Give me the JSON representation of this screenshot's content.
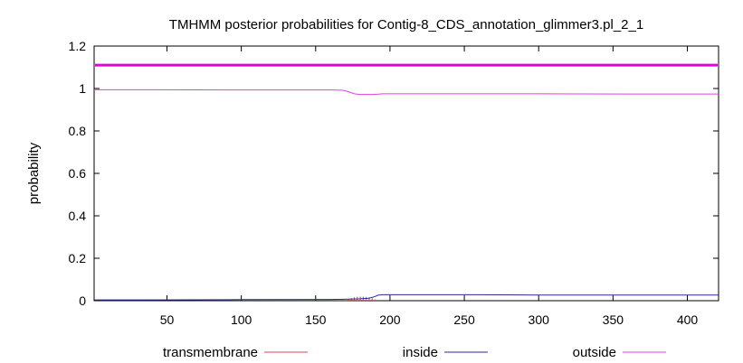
{
  "chart_data": {
    "type": "line",
    "title": "TMHMM posterior probabilities for Contig-8_CDS_annotation_glimmer3.pl_2_1",
    "xlabel": "",
    "ylabel": "probability",
    "xlim": [
      1,
      421
    ],
    "ylim": [
      0,
      1.2
    ],
    "x_ticks": [
      "50",
      "100",
      "150",
      "200",
      "250",
      "300",
      "350",
      "400"
    ],
    "y_ticks": [
      "0",
      "0.2",
      "0.4",
      "0.6",
      "0.8",
      "1",
      "1.2"
    ],
    "legend_position": "bottom",
    "series": [
      {
        "name": "transmembrane",
        "color": "#e0405a",
        "style": "impulses",
        "x": [
          170,
          172,
          174,
          176,
          178,
          180,
          182,
          184,
          186,
          188,
          190
        ],
        "y": [
          0.003,
          0.008,
          0.012,
          0.016,
          0.018,
          0.019,
          0.019,
          0.018,
          0.016,
          0.012,
          0.006
        ]
      },
      {
        "name": "inside",
        "color": "#2b2b8c",
        "style": "line",
        "x": [
          1,
          40,
          100,
          160,
          170,
          180,
          186,
          190,
          192,
          195,
          200,
          260,
          300,
          360,
          421
        ],
        "y": [
          0.004,
          0.004,
          0.005,
          0.006,
          0.007,
          0.009,
          0.012,
          0.02,
          0.026,
          0.028,
          0.028,
          0.028,
          0.027,
          0.027,
          0.027
        ]
      },
      {
        "name": "outside",
        "color": "#e040e0",
        "style": "line",
        "x": [
          1,
          40,
          100,
          160,
          168,
          172,
          176,
          180,
          188,
          192,
          195,
          200,
          260,
          300,
          360,
          421
        ],
        "y": [
          0.994,
          0.994,
          0.993,
          0.993,
          0.992,
          0.985,
          0.975,
          0.972,
          0.972,
          0.973,
          0.975,
          0.975,
          0.975,
          0.975,
          0.974,
          0.974
        ]
      }
    ],
    "reference_line": {
      "y": 1.11,
      "color": "#e000e0"
    }
  }
}
